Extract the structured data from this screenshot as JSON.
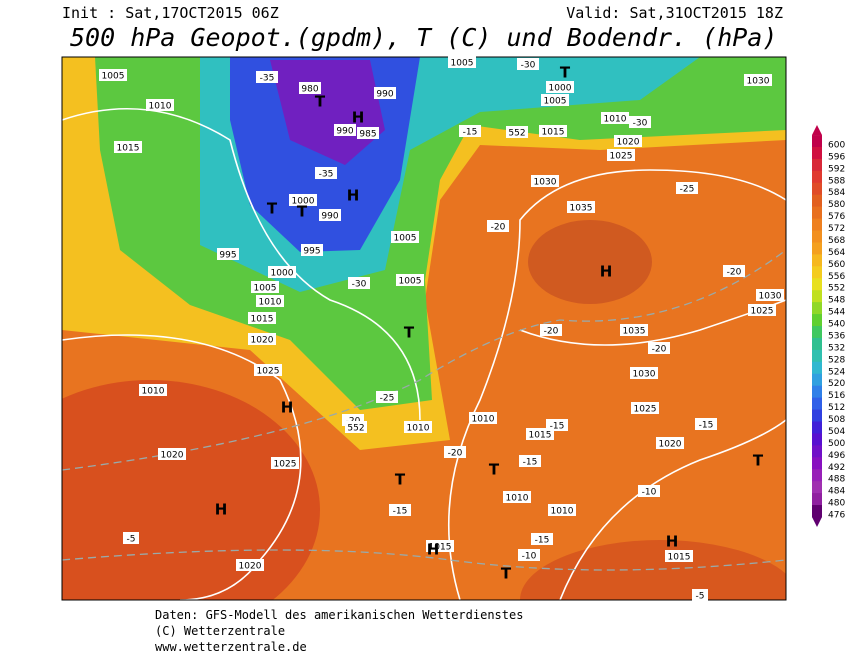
{
  "header": {
    "init": "Init : Sat,17OCT2015 06Z",
    "valid": "Valid: Sat,31OCT2015 18Z",
    "title": "500 hPa Geopot.(gpdm), T (C) und Bodendr. (hPa)"
  },
  "legend": {
    "levels": [
      600,
      596,
      592,
      588,
      584,
      580,
      576,
      572,
      568,
      564,
      560,
      556,
      552,
      548,
      544,
      540,
      536,
      532,
      528,
      524,
      520,
      516,
      512,
      508,
      504,
      500,
      496,
      492,
      488,
      484,
      480,
      476
    ]
  },
  "map_labels": [
    "1005",
    "1010",
    "1015",
    "980",
    "990",
    "985",
    "990",
    "1000",
    "990",
    "995",
    "995",
    "1000",
    "1005",
    "1010",
    "1015",
    "1020",
    "1025",
    "1010",
    "1020",
    "1025",
    "1020",
    "1005",
    "1005",
    "1010",
    "1010",
    "1015",
    "1010",
    "1010",
    "1015",
    "1000",
    "1005",
    "1015",
    "1010",
    "1020",
    "1025",
    "1030",
    "1035",
    "1035",
    "1030",
    "1025",
    "1020",
    "1015",
    "1030",
    "1030",
    "1025",
    "1005",
    "-35",
    "-35",
    "-30",
    "-25",
    "-20",
    "-15",
    "-20",
    "-20",
    "-20",
    "-15",
    "-15",
    "-20",
    "-15",
    "-15",
    "-10",
    "-10",
    "-15",
    "-25",
    "-20",
    "-30",
    "-30",
    "-5",
    "-5",
    "552",
    "552"
  ],
  "map_markers": [
    "T",
    "H",
    "T",
    "T",
    "H",
    "T",
    "H",
    "H",
    "T",
    "T",
    "H",
    "H",
    "T",
    "H",
    "T",
    "T"
  ],
  "footer": [
    "Daten: GFS-Modell des amerikanischen Wetterdienstes",
    "(C) Wetterzentrale",
    "www.wetterzentrale.de"
  ]
}
